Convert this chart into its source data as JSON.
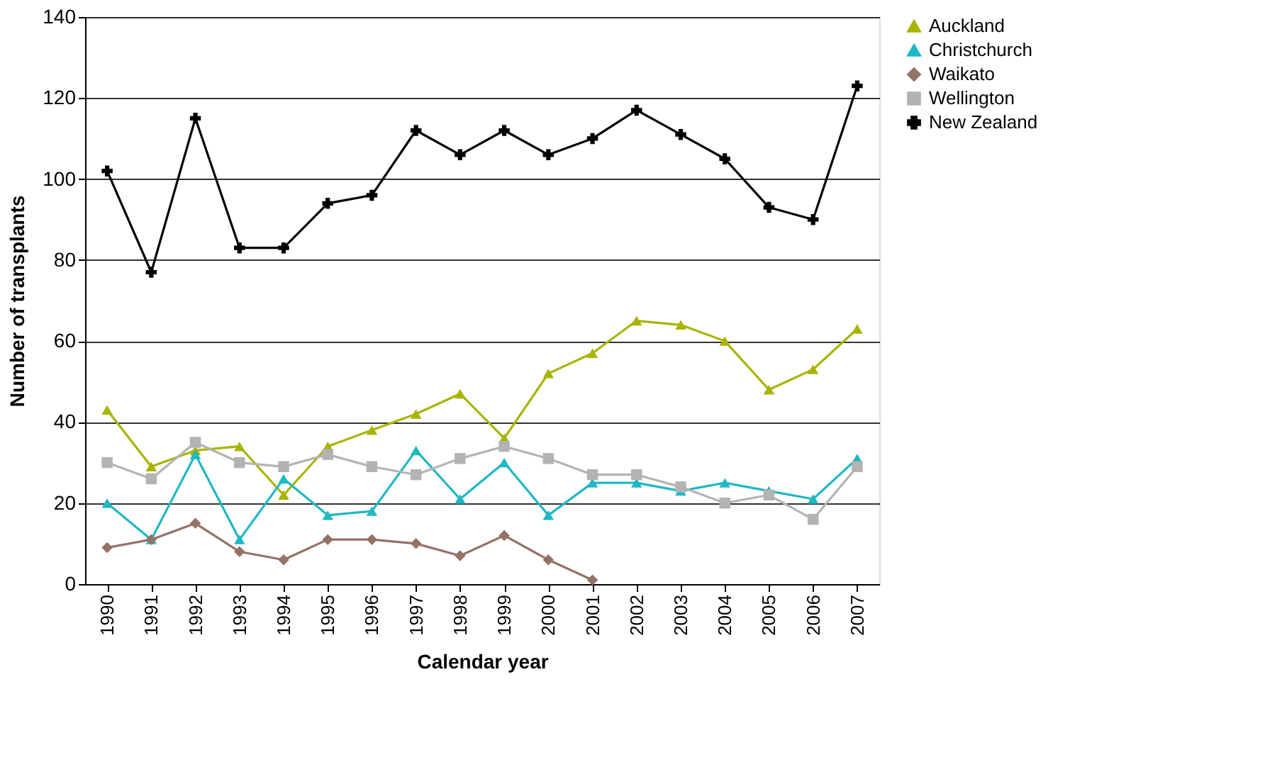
{
  "chart_data": {
    "type": "line",
    "xlabel": "Calendar year",
    "ylabel": "Number of transplants",
    "categories": [
      "1990",
      "1991",
      "1992",
      "1993",
      "1994",
      "1995",
      "1996",
      "1997",
      "1998",
      "1999",
      "2000",
      "2001",
      "2002",
      "2003",
      "2004",
      "2005",
      "2006",
      "2007"
    ],
    "ylim": [
      0,
      140
    ],
    "yticks": [
      0,
      20,
      40,
      60,
      80,
      100,
      120,
      140
    ],
    "grid": "y",
    "legend": "right",
    "series": [
      {
        "name": "Auckland",
        "color": "#a8b400",
        "marker": "triangle",
        "values": [
          43,
          29,
          33,
          34,
          22,
          34,
          38,
          42,
          47,
          36,
          52,
          57,
          65,
          64,
          60,
          48,
          53,
          63
        ]
      },
      {
        "name": "Christchurch",
        "color": "#1fb8c3",
        "marker": "triangle",
        "values": [
          20,
          11,
          32,
          11,
          26,
          17,
          18,
          33,
          21,
          30,
          17,
          25,
          25,
          23,
          25,
          23,
          21,
          31
        ]
      },
      {
        "name": "Waikato",
        "color": "#957266",
        "marker": "diamond",
        "values": [
          9,
          11,
          15,
          8,
          6,
          11,
          11,
          10,
          7,
          12,
          6,
          1,
          null,
          null,
          null,
          null,
          null,
          null
        ]
      },
      {
        "name": "Wellington",
        "color": "#b3b3b3",
        "marker": "square",
        "values": [
          30,
          26,
          35,
          30,
          29,
          32,
          29,
          27,
          31,
          34,
          31,
          27,
          27,
          24,
          20,
          22,
          16,
          29
        ]
      },
      {
        "name": "New Zealand",
        "color": "#000000",
        "marker": "cross",
        "values": [
          102,
          77,
          115,
          83,
          83,
          94,
          96,
          112,
          106,
          112,
          106,
          110,
          117,
          111,
          105,
          93,
          90,
          123
        ]
      }
    ]
  }
}
